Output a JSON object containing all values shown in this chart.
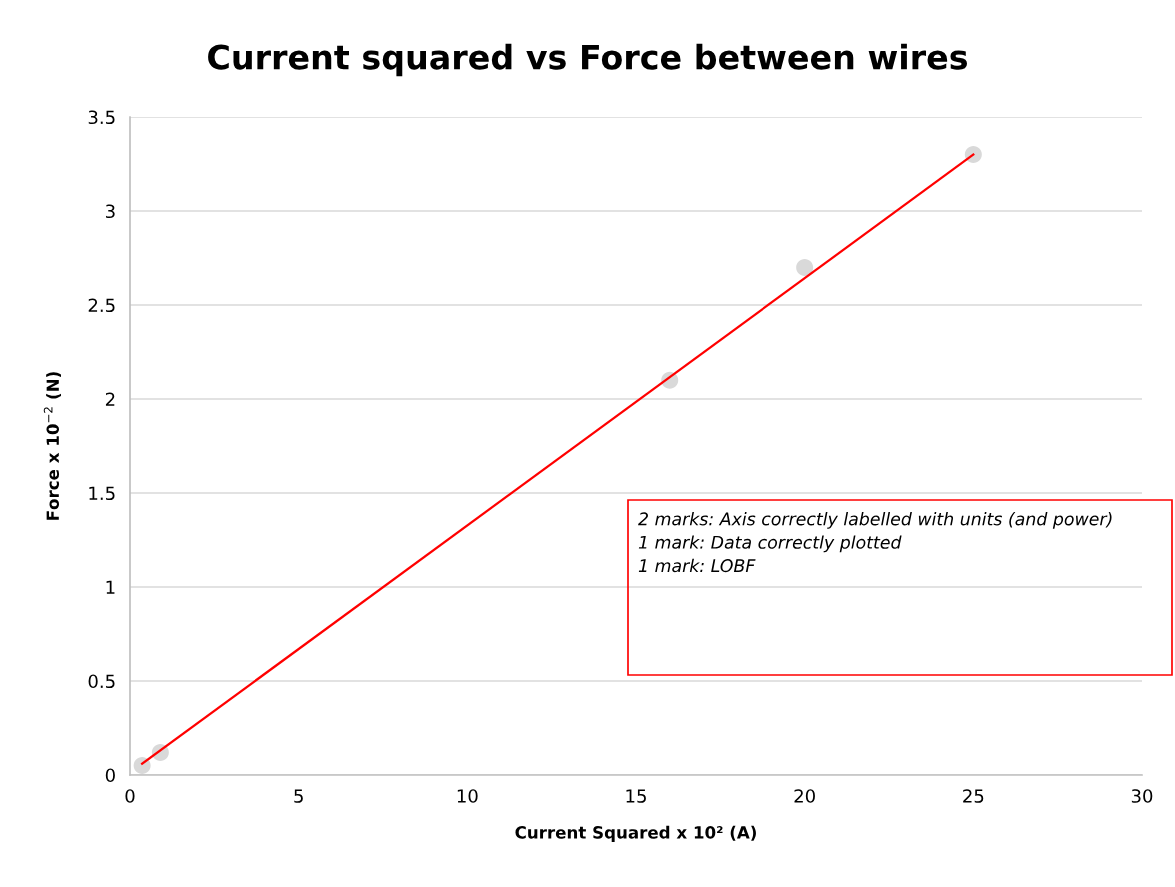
{
  "chart_data": {
    "type": "scatter",
    "title": "Current squared vs Force between wires",
    "xlabel": "Current Squared x 10² (A)",
    "ylabel": "Force x 10$^{−2}$ (N)",
    "series": [
      {
        "type": "scatter",
        "color": "#d9d9d9",
        "marker": "circle",
        "x": [
          0.36,
          0.9,
          16,
          20,
          25
        ],
        "values": [
          0.05,
          0.12,
          2.1,
          2.7,
          3.3
        ]
      },
      {
        "type": "line",
        "color": "#ff0000",
        "marker": "none",
        "line_style": "solid",
        "x": [
          0.36,
          25
        ],
        "values": [
          0.06,
          3.3
        ]
      }
    ],
    "xlim": [
      0,
      30
    ],
    "xticks": [
      0,
      5,
      10,
      15,
      20,
      25,
      30
    ],
    "ylim": [
      0,
      3.5
    ],
    "yticks": [
      0,
      0.5,
      1,
      1.5,
      2,
      2.5,
      3,
      3.5
    ],
    "grid": "y",
    "annotations": [
      "2 marks: Axis correctly labelled with units (and power)\n1 mark: Data correctly plotted\n1 mark: LOBF"
    ]
  }
}
